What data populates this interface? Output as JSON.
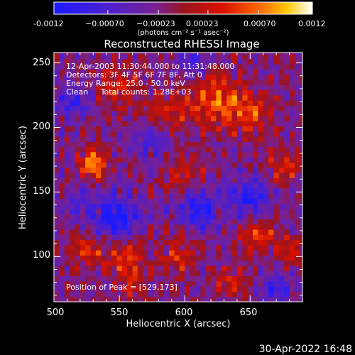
{
  "chart_data": {
    "type": "heatmap",
    "title": "Reconstructed RHESSI Image",
    "xlabel": "Heliocentric X (arcsec)",
    "ylabel": "Heliocentric Y (arcsec)",
    "xlim": [
      500,
      690
    ],
    "ylim": [
      65,
      258
    ],
    "xticks": [
      500,
      550,
      600,
      650
    ],
    "xtick_labels": [
      "500",
      "550",
      "600",
      "650"
    ],
    "yticks": [
      100,
      150,
      200,
      250
    ],
    "ytick_labels": [
      "100",
      "150",
      "200",
      "250"
    ],
    "colorbar": {
      "min": -0.0012,
      "max": 0.0012,
      "tick_labels": [
        "-0.0012",
        "−0.00070",
        "−0.00023",
        "0.00023",
        "0.00070",
        "0.0012"
      ],
      "units_label": "(photons cm⁻² s⁻¹ asec⁻²)",
      "colormap": [
        "#1a1aff",
        "#4b1fd0",
        "#7a2090",
        "#9a1420",
        "#d81000",
        "#ff6a00",
        "#ffc800",
        "#ffffff"
      ]
    },
    "annotations": [
      "12-Apr-2003 11:30:44.000 to 11:31:48.000",
      "Detectors: 3F 4F 5F 6F 7F 8F, Att 0",
      "Energy Range: 25.0 - 50.0 keV",
      "Clean     Total counts: 1.28E+03"
    ],
    "peak_label": "Position of Peak = [529,173]",
    "peak_position": [
      529,
      173
    ],
    "hot_regions": [
      {
        "x": 530,
        "y": 172,
        "sigma": 7,
        "amp": 0.00115
      },
      {
        "x": 622,
        "y": 222,
        "sigma": 14,
        "amp": 0.00085
      },
      {
        "x": 650,
        "y": 210,
        "sigma": 12,
        "amp": 0.00065
      },
      {
        "x": 548,
        "y": 232,
        "sigma": 12,
        "amp": 0.00055
      },
      {
        "x": 585,
        "y": 210,
        "sigma": 12,
        "amp": 0.0005
      },
      {
        "x": 600,
        "y": 165,
        "sigma": 10,
        "amp": 0.00055
      },
      {
        "x": 555,
        "y": 100,
        "sigma": 10,
        "amp": 0.00075
      },
      {
        "x": 595,
        "y": 100,
        "sigma": 10,
        "amp": 0.0006
      },
      {
        "x": 525,
        "y": 105,
        "sigma": 9,
        "amp": 0.0006
      },
      {
        "x": 655,
        "y": 118,
        "sigma": 9,
        "amp": 0.0007
      },
      {
        "x": 680,
        "y": 105,
        "sigma": 8,
        "amp": 0.0006
      },
      {
        "x": 675,
        "y": 170,
        "sigma": 9,
        "amp": 0.0006
      },
      {
        "x": 560,
        "y": 75,
        "sigma": 8,
        "amp": 0.0005
      },
      {
        "x": 635,
        "y": 80,
        "sigma": 8,
        "amp": 0.0005
      }
    ],
    "cold_regions": [
      {
        "x": 548,
        "y": 130,
        "sigma": 12,
        "amp": -0.0009
      },
      {
        "x": 610,
        "y": 138,
        "sigma": 11,
        "amp": -0.0008
      },
      {
        "x": 650,
        "y": 145,
        "sigma": 11,
        "amp": -0.0008
      },
      {
        "x": 575,
        "y": 190,
        "sigma": 10,
        "amp": -0.0006
      },
      {
        "x": 515,
        "y": 220,
        "sigma": 9,
        "amp": -0.0006
      },
      {
        "x": 605,
        "y": 250,
        "sigma": 9,
        "amp": -0.0005
      },
      {
        "x": 670,
        "y": 75,
        "sigma": 8,
        "amp": -0.0007
      },
      {
        "x": 520,
        "y": 140,
        "sigma": 8,
        "amp": -0.0005
      }
    ]
  },
  "footer": {
    "timestamp": "30-Apr-2022 16:48"
  }
}
